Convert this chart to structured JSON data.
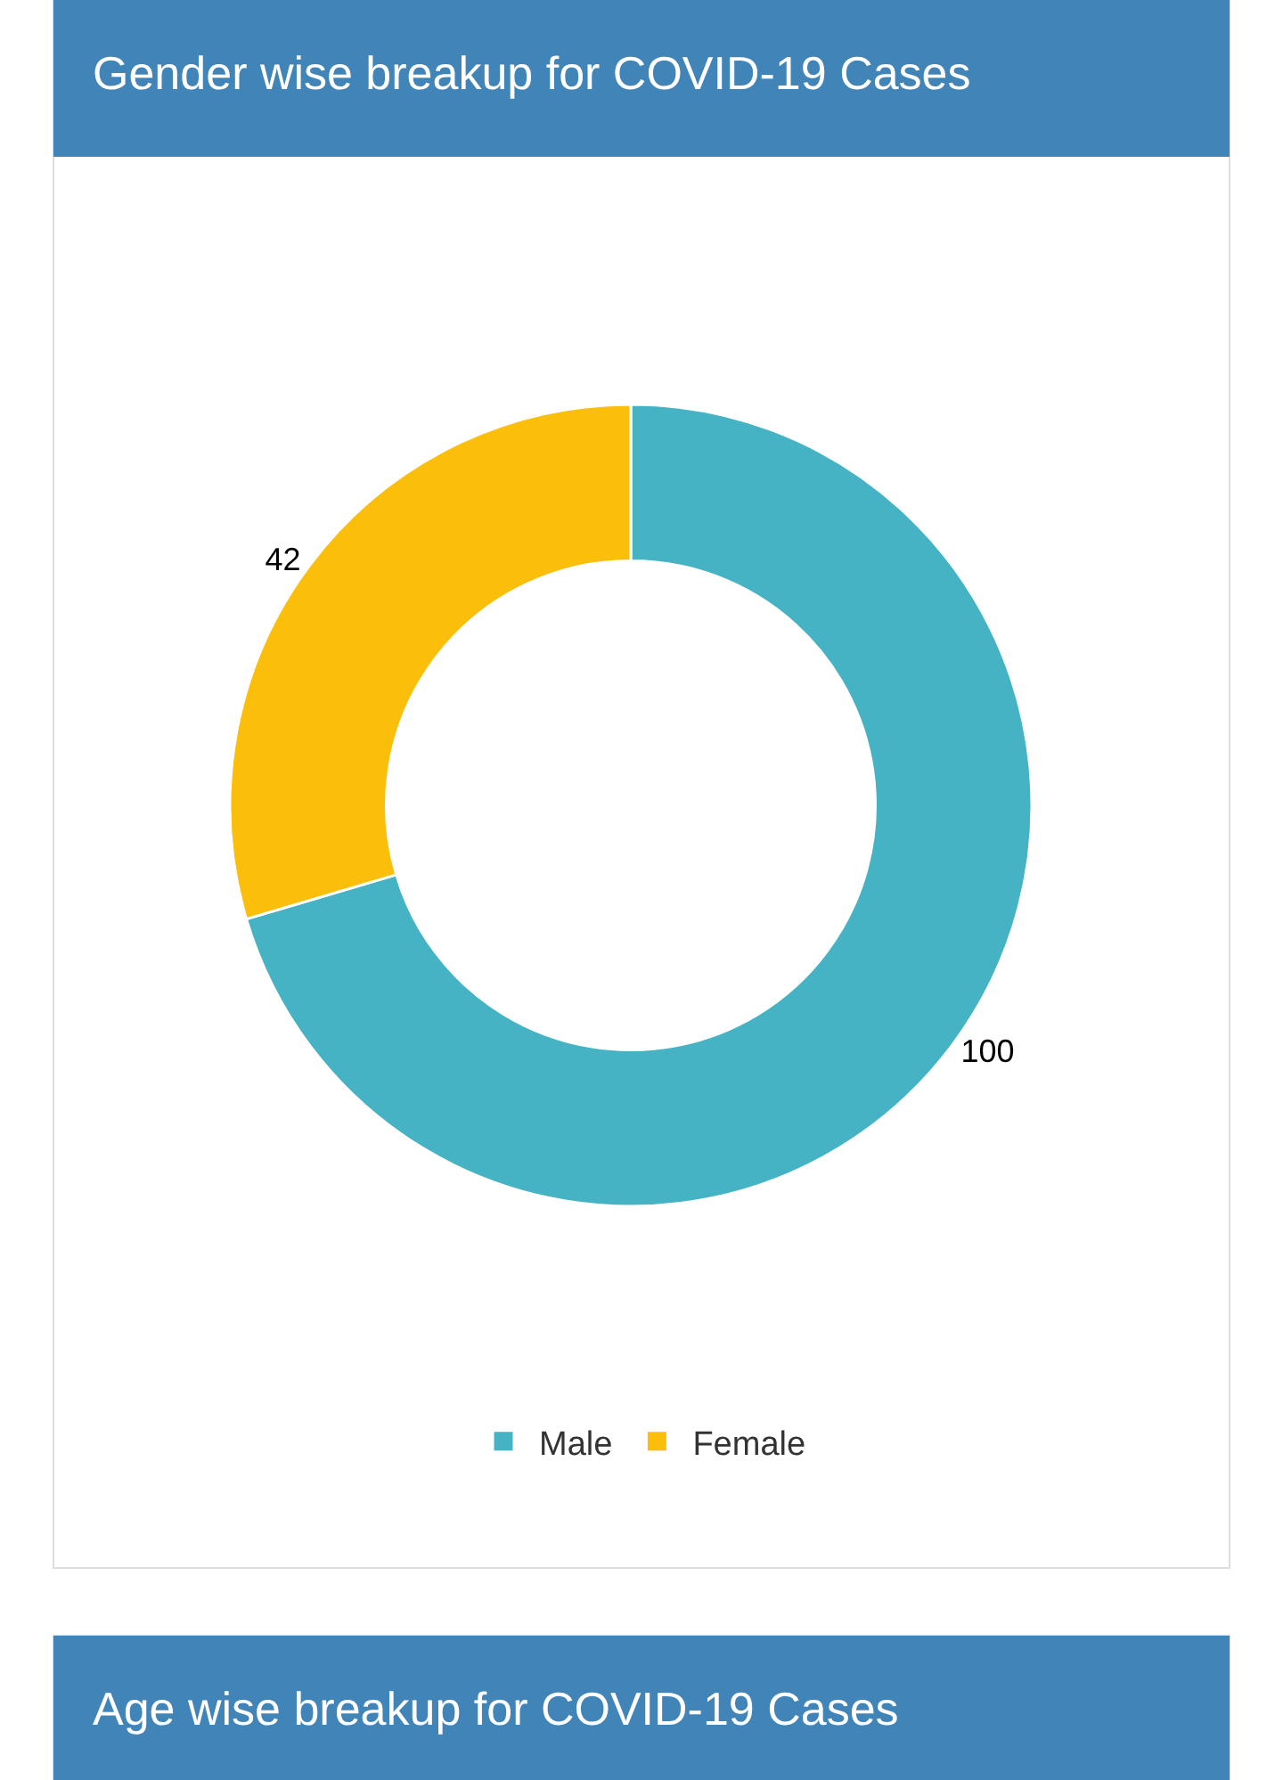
{
  "chart_data": [
    {
      "type": "donut",
      "title": "Gender wise breakup for COVID-19 Cases",
      "categories": [
        "Male",
        "Female"
      ],
      "values": [
        100,
        42
      ],
      "colors": [
        "#45b3c4",
        "#fbbf0b"
      ],
      "data_labels": true,
      "legend": "bottom"
    },
    {
      "type": "other",
      "title": "Age wise breakup for COVID-19 Cases"
    }
  ]
}
